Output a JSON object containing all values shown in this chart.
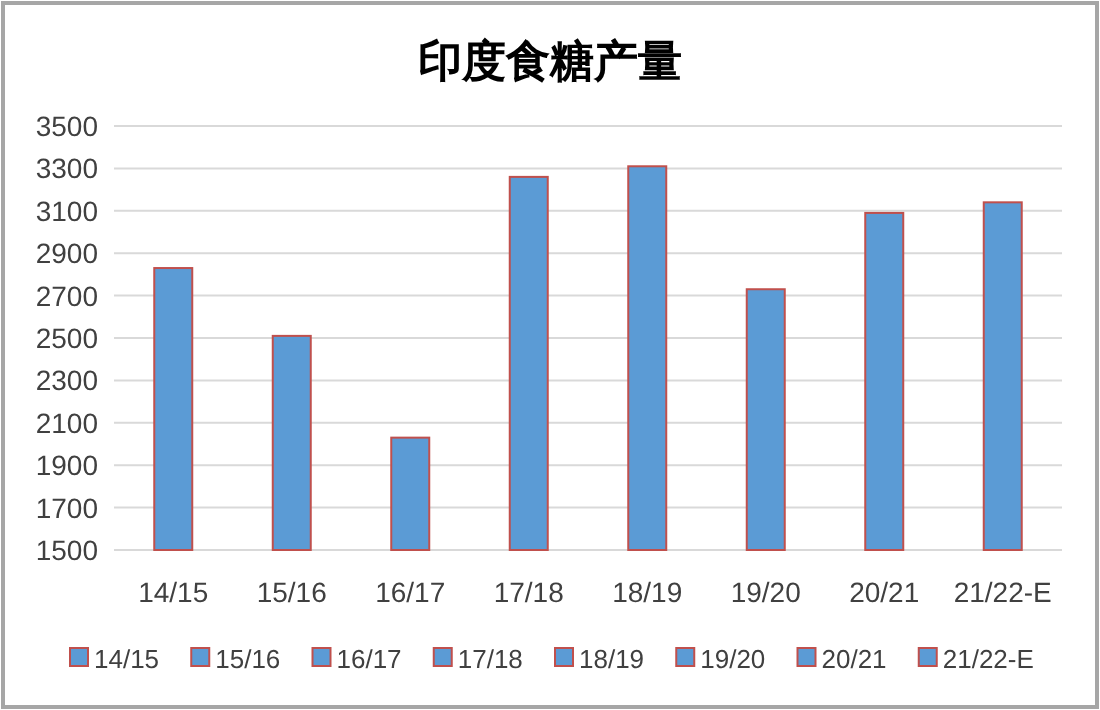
{
  "chart_data": {
    "type": "bar",
    "title": "印度食糖产量",
    "categories": [
      "14/15",
      "15/16",
      "16/17",
      "17/18",
      "18/19",
      "19/20",
      "20/21",
      "21/22-E"
    ],
    "series": [
      {
        "name": "14/15",
        "color": "#5b9bd5",
        "values": [
          2830,
          null,
          null,
          null,
          null,
          null,
          null,
          null
        ]
      },
      {
        "name": "15/16",
        "color": "#5b9bd5",
        "values": [
          null,
          2510,
          null,
          null,
          null,
          null,
          null,
          null
        ]
      },
      {
        "name": "16/17",
        "color": "#5b9bd5",
        "values": [
          null,
          null,
          2030,
          null,
          null,
          null,
          null,
          null
        ]
      },
      {
        "name": "17/18",
        "color": "#5b9bd5",
        "values": [
          null,
          null,
          null,
          3260,
          null,
          null,
          null,
          null
        ]
      },
      {
        "name": "18/19",
        "color": "#5b9bd5",
        "values": [
          null,
          null,
          null,
          null,
          3310,
          null,
          null,
          null
        ]
      },
      {
        "name": "19/20",
        "color": "#5b9bd5",
        "values": [
          null,
          null,
          null,
          null,
          null,
          2730,
          null,
          null
        ]
      },
      {
        "name": "20/21",
        "color": "#5b9bd5",
        "values": [
          null,
          null,
          null,
          null,
          null,
          null,
          3090,
          null
        ]
      },
      {
        "name": "21/22-E",
        "color": "#5b9bd5",
        "values": [
          null,
          null,
          null,
          null,
          null,
          null,
          null,
          3140
        ]
      }
    ],
    "ylim": [
      1500,
      3500
    ],
    "yticks": [
      1500,
      1700,
      1900,
      2100,
      2300,
      2500,
      2700,
      2900,
      3100,
      3300,
      3500
    ],
    "grid": "y",
    "legend": "bottom"
  }
}
